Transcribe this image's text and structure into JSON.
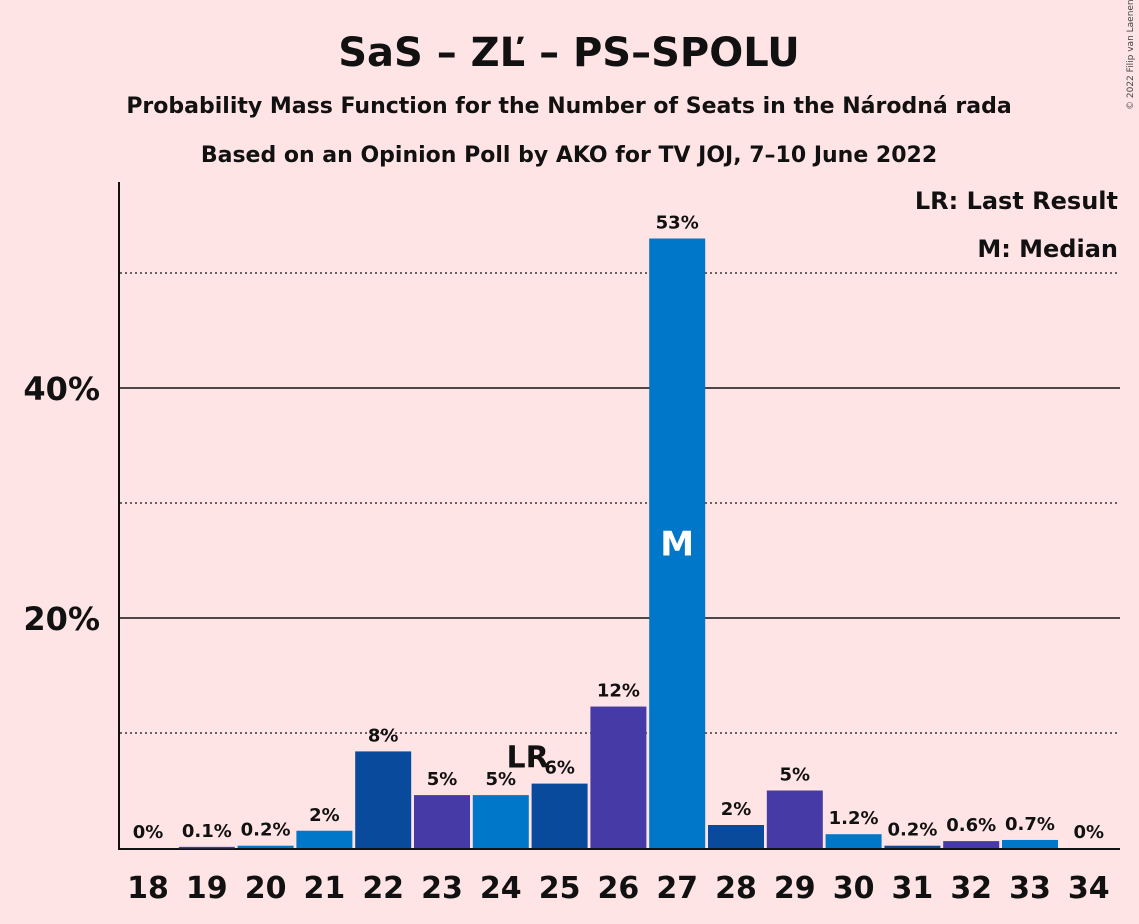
{
  "chart_data": {
    "type": "bar",
    "title": "SaS – ZĽ – PS–SPOLU",
    "subtitle_lines": [
      "Probability Mass Function for the Number of Seats in the Národná rada",
      "Based on an Opinion Poll by AKO for TV JOJ, 7–10 June 2022"
    ],
    "copyright": "© 2022 Filip van Laenen",
    "legend": {
      "lr": "LR: Last Result",
      "m": "M: Median",
      "placement": "top-right"
    },
    "categories": [
      "18",
      "19",
      "20",
      "21",
      "22",
      "23",
      "24",
      "25",
      "26",
      "27",
      "28",
      "29",
      "30",
      "31",
      "32",
      "33",
      "34"
    ],
    "values": [
      0,
      0.1,
      0.2,
      1.5,
      8.4,
      4.6,
      4.6,
      5.6,
      12.3,
      53.0,
      2.0,
      5.0,
      1.2,
      0.2,
      0.6,
      0.7,
      0
    ],
    "value_labels": [
      "0%",
      "0.1%",
      "0.2%",
      "2%",
      "8%",
      "5%",
      "5%",
      "6%",
      "12%",
      "53%",
      "2%",
      "5%",
      "1.2%",
      "0.2%",
      "0.6%",
      "0.7%",
      "0%"
    ],
    "bar_colors": [
      "#0a4a9c",
      "#463ba6",
      "#0077c8",
      "#0077c8",
      "#0a4a9c",
      "#463ba6",
      "#0077c8",
      "#0a4a9c",
      "#463ba6",
      "#0077c8",
      "#0a4a9c",
      "#463ba6",
      "#0077c8",
      "#0a4a9c",
      "#463ba6",
      "#0077c8",
      "#0a4a9c"
    ],
    "last_result": {
      "category": "25",
      "label": "LR"
    },
    "median": {
      "category": "27",
      "label": "M"
    },
    "ylim": [
      0,
      58
    ],
    "yticks": [
      {
        "value": 20,
        "label": "20%"
      },
      {
        "value": 40,
        "label": "40%"
      }
    ],
    "dotted_gridlines": [
      10,
      30,
      50
    ],
    "grid": true
  }
}
